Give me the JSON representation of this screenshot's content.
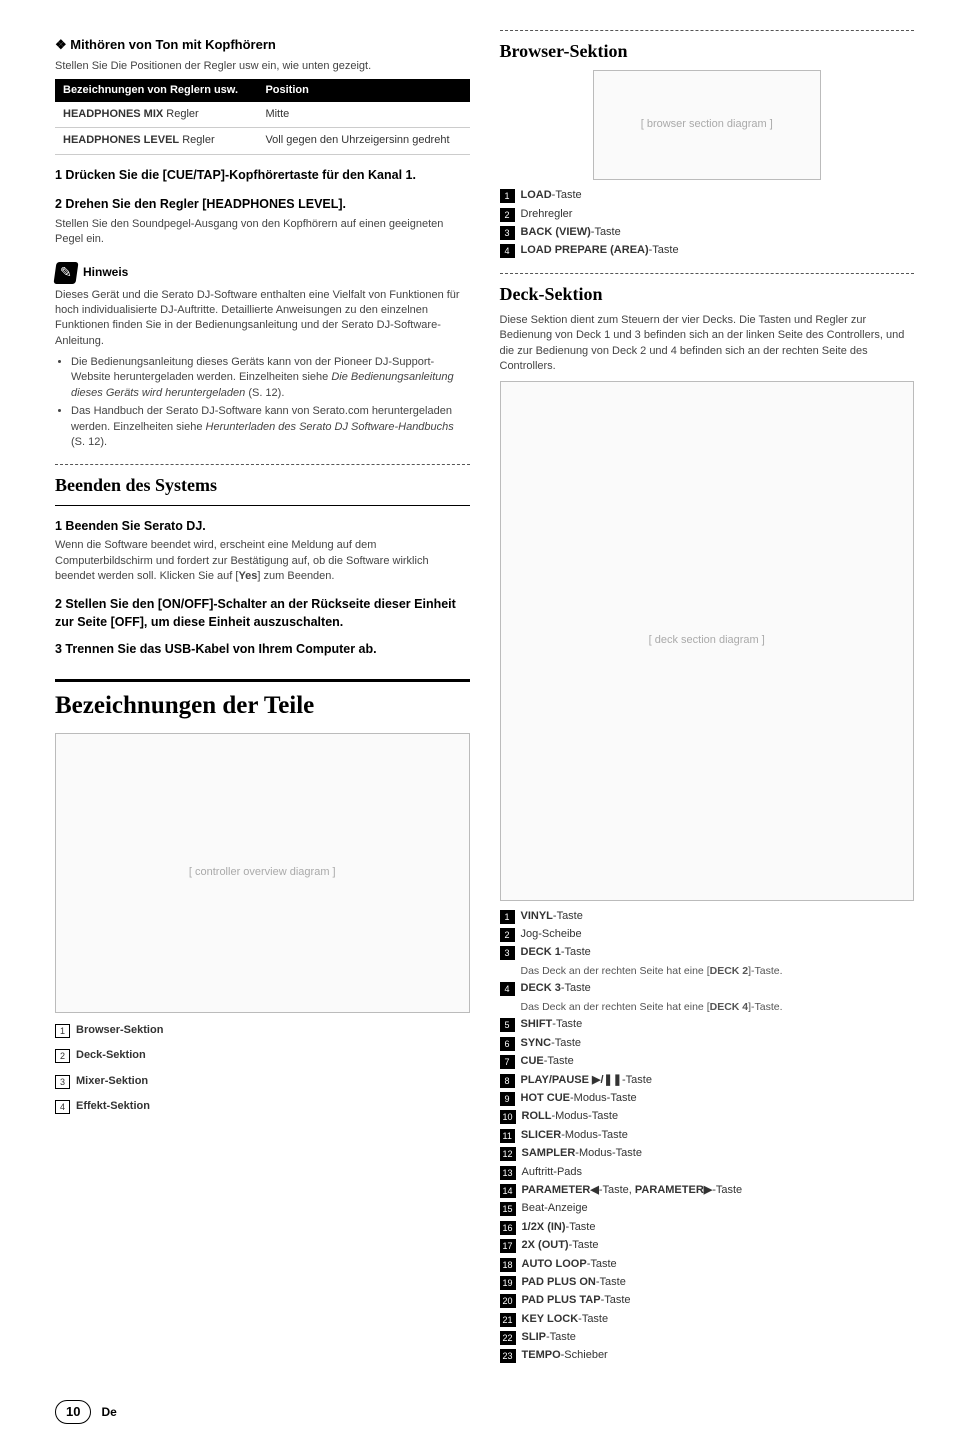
{
  "left": {
    "h_diamond": "Mithören von Ton mit Kopfhörern",
    "intro": "Stellen Sie Die Positionen der Regler usw ein, wie unten gezeigt.",
    "table": {
      "head1": "Bezeichnungen von Reglern usw.",
      "head2": "Position",
      "rows": [
        {
          "c1_bold": "HEADPHONES MIX",
          "c1_plain": " Regler",
          "c2": "Mitte"
        },
        {
          "c1_bold": "HEADPHONES LEVEL",
          "c1_plain": " Regler",
          "c2": "Voll gegen den Uhrzeigersinn gedreht"
        }
      ]
    },
    "step1": "1   Drücken Sie die [CUE/TAP]-Kopfhörertaste für den Kanal 1.",
    "step2": "2   Drehen Sie den Regler [HEADPHONES LEVEL].",
    "step2_body": "Stellen Sie den Soundpegel-Ausgang von den Kopfhörern auf einen geeigneten Pegel ein.",
    "note_label": "Hinweis",
    "note_body": "Dieses Gerät und die Serato DJ-Software enthalten eine Vielfalt von Funktionen für hoch individualisierte DJ-Auftritte. Detaillierte Anweisungen zu den einzelnen Funktionen finden Sie in der Bedienungsanleitung und der Serato DJ-Software-Anleitung.",
    "note_bullets": [
      "Die Bedienungsanleitung dieses Geräts kann von der Pioneer DJ-Support-Website heruntergeladen werden. Einzelheiten siehe <em>Die Bedienungsanleitung dieses Geräts wird heruntergeladen</em> (S. 12).",
      "Das Handbuch der Serato DJ-Software kann von Serato.com heruntergeladen werden. Einzelheiten siehe <em>Herunterladen des Serato DJ Software-Handbuchs</em> (S. 12)."
    ],
    "shutdown_title": "Beenden des Systems",
    "sd_step1": "1   Beenden Sie Serato DJ.",
    "sd_step1_body": "Wenn die Software beendet wird, erscheint eine Meldung auf dem Computerbildschirm und fordert zur Bestätigung auf, ob die Software wirklich beendet werden soll. Klicken Sie auf [<strong>Yes</strong>] zum Beenden.",
    "sd_step2": "2   Stellen Sie den [ON/OFF]-Schalter an der Rückseite dieser Einheit zur Seite [OFF], um diese Einheit auszuschalten.",
    "sd_step3": "3   Trennen Sie das USB-Kabel von Ihrem Computer ab.",
    "parts_title": "Bezeichnungen der Teile",
    "parts_legend": [
      {
        "n": "1",
        "text": "Browser-Sektion"
      },
      {
        "n": "2",
        "text": "Deck-Sektion"
      },
      {
        "n": "3",
        "text": "Mixer-Sektion"
      },
      {
        "n": "4",
        "text": "Effekt-Sektion"
      }
    ]
  },
  "right": {
    "browser_title": "Browser-Sektion",
    "browser_legend": [
      {
        "n": "1",
        "html": "<span class='b'>LOAD</span>-Taste"
      },
      {
        "n": "2",
        "html": "Drehregler"
      },
      {
        "n": "3",
        "html": "<span class='b'>BACK (VIEW)</span>-Taste"
      },
      {
        "n": "4",
        "html": "<span class='b'>LOAD PREPARE (AREA)</span>-Taste"
      }
    ],
    "deck_title": "Deck-Sektion",
    "deck_intro": "Diese Sektion dient zum Steuern der vier Decks. Die Tasten und Regler zur Bedienung von Deck 1 und 3 befinden sich an der linken Seite des Controllers, und die zur Bedienung von Deck 2 und 4 befinden sich an der rechten Seite des Controllers.",
    "deck_legend": [
      {
        "n": "1",
        "html": "<span class='b'>VINYL</span>-Taste"
      },
      {
        "n": "2",
        "html": "Jog-Scheibe"
      },
      {
        "n": "3",
        "html": "<span class='b'>DECK 1</span>-Taste",
        "sub": "Das Deck an der rechten Seite hat eine [<strong>DECK 2</strong>]-Taste."
      },
      {
        "n": "4",
        "html": "<span class='b'>DECK 3</span>-Taste",
        "sub": "Das Deck an der rechten Seite hat eine [<strong>DECK 4</strong>]-Taste."
      },
      {
        "n": "5",
        "html": "<span class='b'>SHIFT</span>-Taste"
      },
      {
        "n": "6",
        "html": "<span class='b'>SYNC</span>-Taste"
      },
      {
        "n": "7",
        "html": "<span class='b'>CUE</span>-Taste"
      },
      {
        "n": "8",
        "html": "<span class='b'>PLAY/PAUSE ▶/❚❚</span>-Taste"
      },
      {
        "n": "9",
        "html": "<span class='b'>HOT CUE</span>-Modus-Taste"
      },
      {
        "n": "10",
        "html": "<span class='b'>ROLL</span>-Modus-Taste"
      },
      {
        "n": "11",
        "html": "<span class='b'>SLICER</span>-Modus-Taste"
      },
      {
        "n": "12",
        "html": "<span class='b'>SAMPLER</span>-Modus-Taste"
      },
      {
        "n": "13",
        "html": "Auftritt-Pads"
      },
      {
        "n": "14",
        "html": "<span class='b'>PARAMETER◀</span>-Taste, <span class='b'>PARAMETER▶</span>-Taste"
      },
      {
        "n": "15",
        "html": "Beat-Anzeige"
      },
      {
        "n": "16",
        "html": "<span class='b'>1/2X (IN)</span>-Taste"
      },
      {
        "n": "17",
        "html": "<span class='b'>2X (OUT)</span>-Taste"
      },
      {
        "n": "18",
        "html": "<span class='b'>AUTO LOOP</span>-Taste"
      },
      {
        "n": "19",
        "html": "<span class='b'>PAD PLUS ON</span>-Taste"
      },
      {
        "n": "20",
        "html": "<span class='b'>PAD PLUS TAP</span>-Taste"
      },
      {
        "n": "21",
        "html": "<span class='b'>KEY LOCK</span>-Taste"
      },
      {
        "n": "22",
        "html": "<span class='b'>SLIP</span>-Taste"
      },
      {
        "n": "23",
        "html": "<span class='b'>TEMPO</span>-Schieber"
      }
    ]
  },
  "footer": {
    "page": "10",
    "lang": "De"
  }
}
